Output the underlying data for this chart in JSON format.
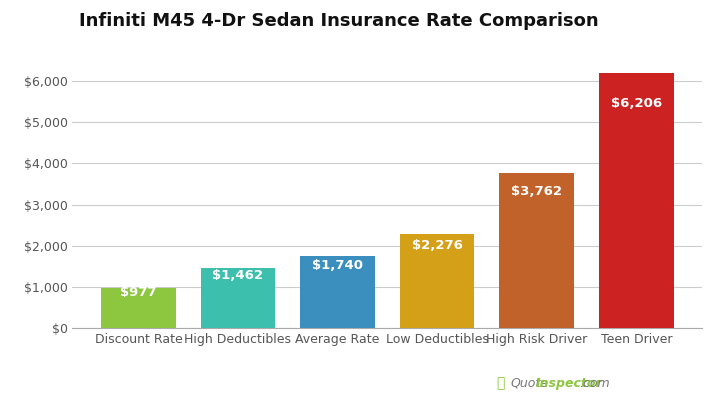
{
  "title": "Infiniti M45 4-Dr Sedan Insurance Rate Comparison",
  "categories": [
    "Discount Rate",
    "High Deductibles",
    "Average Rate",
    "Low Deductibles",
    "High Risk Driver",
    "Teen Driver"
  ],
  "values": [
    977,
    1462,
    1740,
    2276,
    3762,
    6206
  ],
  "bar_colors": [
    "#8dc63f",
    "#3dbfad",
    "#3a8fbf",
    "#d4a017",
    "#c0622a",
    "#cc2222"
  ],
  "labels": [
    "$977",
    "$1,462",
    "$1,740",
    "$2,276",
    "$3,762",
    "$6,206"
  ],
  "ylim": [
    0,
    7000
  ],
  "yticks": [
    0,
    1000,
    2000,
    3000,
    4000,
    5000,
    6000
  ],
  "ytick_labels": [
    "$0",
    "$1,000",
    "$2,000",
    "$3,000",
    "$4,000",
    "$5,000",
    "$6,000"
  ],
  "title_fontsize": 13,
  "label_fontsize": 9.5,
  "tick_fontsize": 9,
  "background_color": "#ffffff",
  "grid_color": "#cccccc",
  "watermark_gray": "#777777",
  "watermark_green": "#8dc63f"
}
